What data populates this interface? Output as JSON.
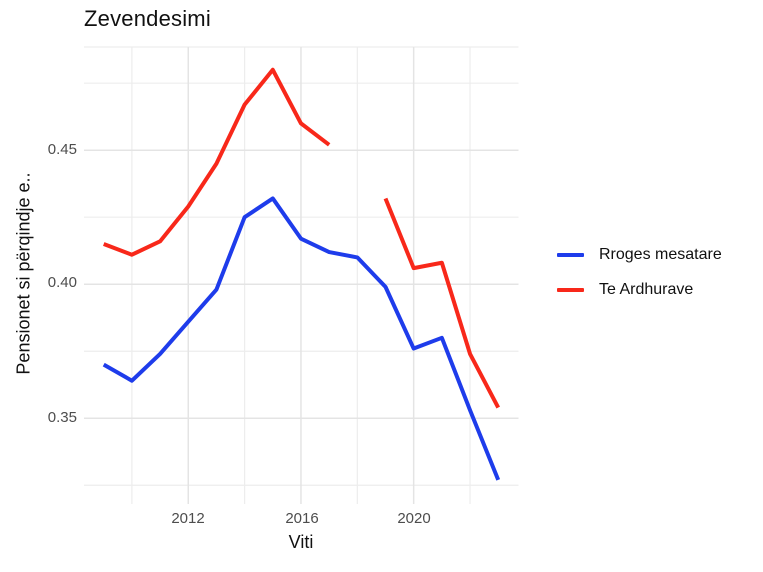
{
  "title": "Zevendesimi",
  "axes": {
    "x_title": "Viti",
    "y_title": "Pensionet si përqindje e..",
    "x_tick_labels": [
      "2012",
      "2016",
      "2020"
    ],
    "y_tick_labels": [
      "0.45",
      "0.40",
      "0.35"
    ]
  },
  "legend": {
    "items": [
      {
        "label": "Rroges mesatare",
        "color": "#1E3CEB"
      },
      {
        "label": "Te Ardhurave",
        "color": "#F8281A"
      }
    ]
  },
  "colors": {
    "major_grid": "#e4e4e4",
    "minor_grid": "#ededed",
    "tick_text": "#4d4d4d",
    "title_text": "#111111"
  },
  "chart_data": {
    "type": "line",
    "title": "Zevendesimi",
    "xlabel": "Viti",
    "ylabel": "Pensionet si përqindje e..",
    "xlim": [
      2008.3,
      2023.72
    ],
    "ylim": [
      0.318,
      0.4885
    ],
    "x_major_ticks": [
      2012,
      2016,
      2020
    ],
    "x_minor_gridlines": [
      2010,
      2014,
      2018,
      2022
    ],
    "y_major_ticks": [
      0.35,
      0.4,
      0.45
    ],
    "y_minor_gridlines": [
      0.325,
      0.375,
      0.425,
      0.475,
      0.4885
    ],
    "grid": true,
    "legend_position": "right",
    "series": [
      {
        "name": "Rroges mesatare",
        "color": "#1E3CEB",
        "segments": [
          {
            "x": [
              2009,
              2010,
              2011,
              2012,
              2013,
              2014,
              2015,
              2016,
              2017,
              2018,
              2019,
              2020,
              2021,
              2022,
              2023
            ],
            "y": [
              0.37,
              0.364,
              0.374,
              0.386,
              0.398,
              0.425,
              0.432,
              0.417,
              0.412,
              0.41,
              0.399,
              0.376,
              0.38,
              0.353,
              0.327
            ]
          }
        ]
      },
      {
        "name": "Te Ardhurave",
        "color": "#F8281A",
        "segments": [
          {
            "x": [
              2009,
              2010,
              2011,
              2012,
              2013,
              2014,
              2015,
              2016,
              2017
            ],
            "y": [
              0.415,
              0.411,
              0.416,
              0.429,
              0.445,
              0.467,
              0.48,
              0.46,
              0.452
            ]
          },
          {
            "x": [
              2019,
              2020,
              2021,
              2022,
              2023
            ],
            "y": [
              0.432,
              0.406,
              0.408,
              0.374,
              0.354
            ]
          }
        ]
      }
    ]
  }
}
